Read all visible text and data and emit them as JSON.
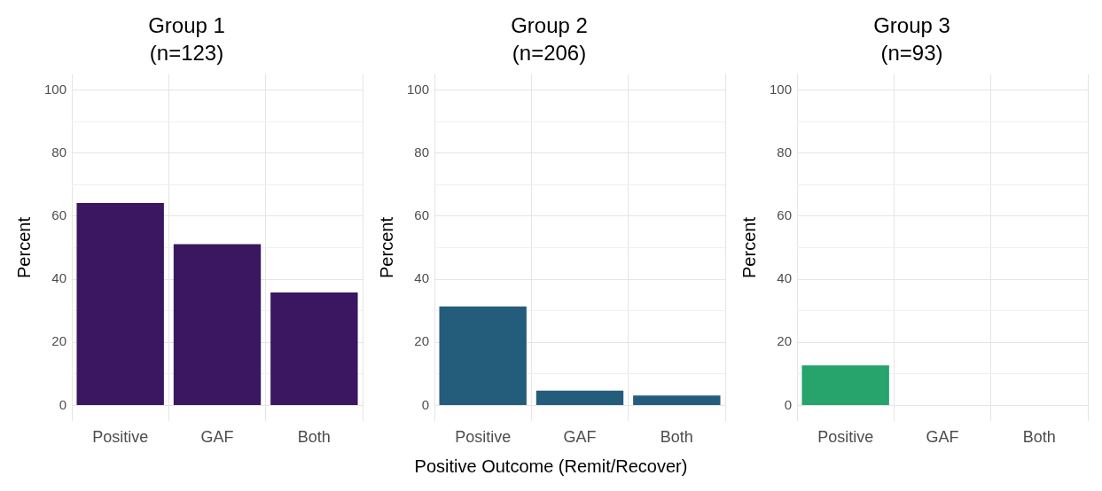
{
  "chart_data": [
    {
      "type": "bar",
      "title": "Group 1",
      "subtitle": "(n=123)",
      "ylabel": "Percent",
      "categories": [
        "Positive",
        "GAF",
        "Both"
      ],
      "series": [
        {
          "color": "#3a1760",
          "values": [
            64.2,
            51.1,
            35.8
          ]
        }
      ],
      "ylim": [
        -5,
        105
      ],
      "yticks": [
        0,
        {
          "value": 10,
          "label": null
        },
        20,
        {
          "value": 30,
          "label": null
        },
        40,
        {
          "value": 50,
          "label": null
        },
        60,
        {
          "value": 70,
          "label": null
        },
        80,
        {
          "value": 90,
          "label": null
        },
        100
      ],
      "grid": true,
      "legend": false
    },
    {
      "type": "bar",
      "title": "Group 2",
      "subtitle": "(n=206)",
      "xlabel": "Positive Outcome (Remit/Recover)",
      "ylabel": "Percent",
      "categories": [
        "Positive",
        "GAF",
        "Both"
      ],
      "series": [
        {
          "color": "#245d7b",
          "values": [
            31.4,
            4.7,
            3.2
          ]
        }
      ],
      "ylim": [
        -5,
        105
      ],
      "yticks": [
        0,
        {
          "value": 10,
          "label": null
        },
        20,
        {
          "value": 30,
          "label": null
        },
        40,
        {
          "value": 50,
          "label": null
        },
        60,
        {
          "value": 70,
          "label": null
        },
        80,
        {
          "value": 90,
          "label": null
        },
        100
      ],
      "grid": true,
      "legend": false
    },
    {
      "type": "bar",
      "title": "Group 3",
      "subtitle": "(n=93)",
      "ylabel": "Percent",
      "categories": [
        "Positive",
        "GAF",
        "Both"
      ],
      "series": [
        {
          "color": "#27a36c",
          "values": [
            12.7,
            0,
            0
          ]
        }
      ],
      "ylim": [
        -5,
        105
      ],
      "yticks": [
        0,
        {
          "value": 10,
          "label": null
        },
        20,
        {
          "value": 30,
          "label": null
        },
        40,
        {
          "value": 50,
          "label": null
        },
        60,
        {
          "value": 70,
          "label": null
        },
        80,
        {
          "value": 90,
          "label": null
        },
        100
      ],
      "grid": true,
      "legend": false
    }
  ]
}
